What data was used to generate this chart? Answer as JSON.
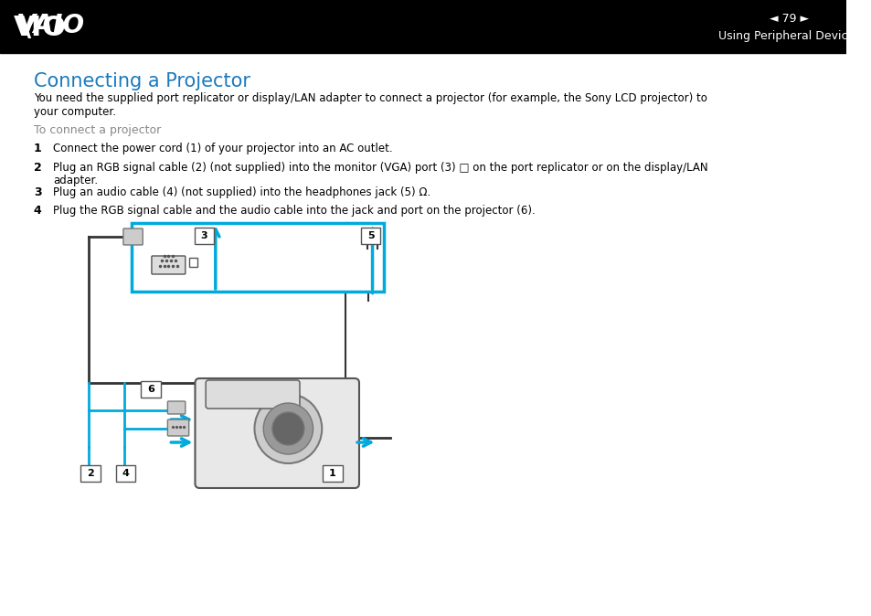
{
  "bg_color": "#ffffff",
  "header_bg": "#000000",
  "header_text_color": "#ffffff",
  "page_number": "79",
  "header_subtitle": "Using Peripheral Devices",
  "title": "Connecting a Projector",
  "title_color": "#1a7abf",
  "body_text_color": "#000000",
  "gray_text_color": "#888888",
  "cyan_color": "#00aadd",
  "intro_text": "You need the supplied port replicator or display/LAN adapter to connect a projector (for example, the Sony LCD projector) to\nyour computer.",
  "subheading": "To connect a projector",
  "steps": [
    {
      "num": "1",
      "text": "Connect the power cord (1) of your projector into an AC outlet."
    },
    {
      "num": "2",
      "text": "Plug an RGB signal cable (2) (not supplied) into the monitor (VGA) port (3) □ on the port replicator or on the display/LAN\n    adapter."
    },
    {
      "num": "3",
      "text": "Plug an audio cable (4) (not supplied) into the headphones jack (5) Ω."
    },
    {
      "num": "4",
      "text": "Plug the RGB signal cable and the audio cable into the jack and port on the projector (6)."
    }
  ]
}
